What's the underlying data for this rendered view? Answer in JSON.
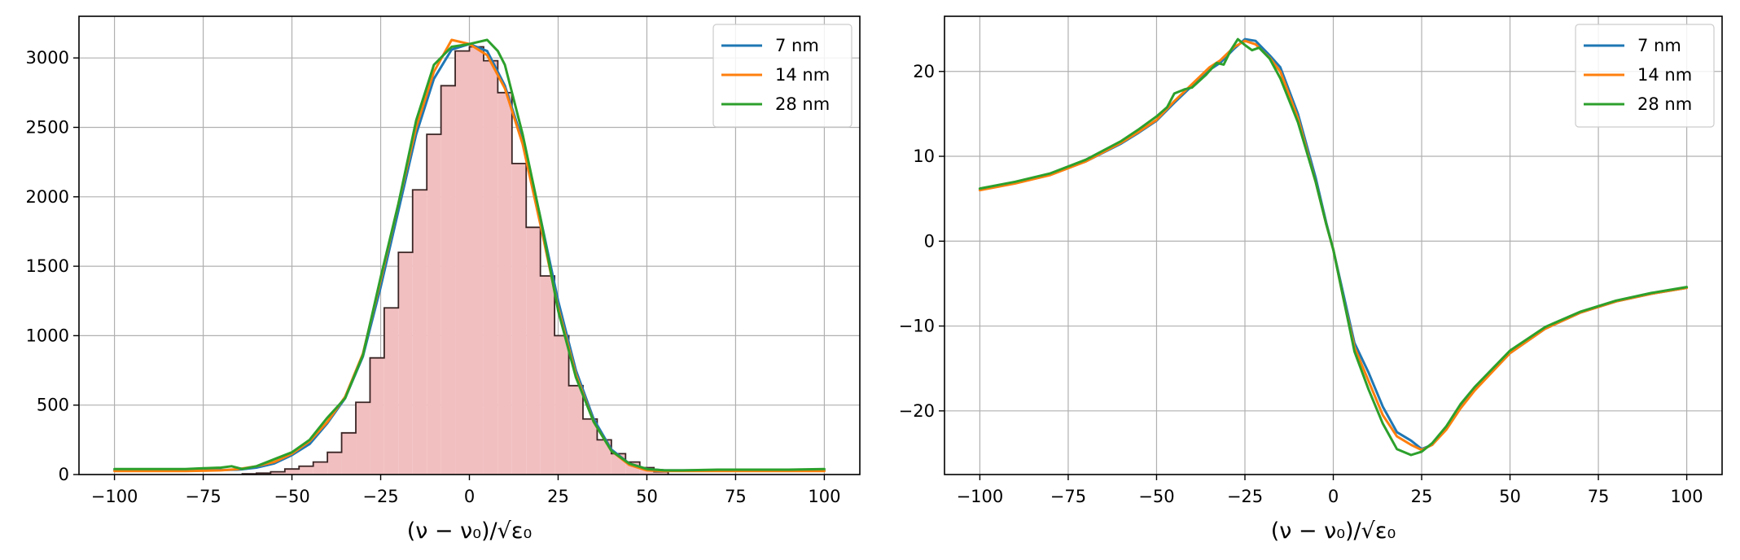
{
  "chart_data": [
    {
      "type": "line",
      "overlay": "histogram",
      "xlabel": "(ν − ν₀)/√ε₀",
      "ylabel": "",
      "xlim": [
        -110,
        110
      ],
      "ylim": [
        0,
        3300
      ],
      "xticks": [
        -100,
        -75,
        -50,
        -25,
        0,
        25,
        50,
        75,
        100
      ],
      "xtick_labels": [
        "−100",
        "−75",
        "−50",
        "−25",
        "0",
        "25",
        "50",
        "75",
        "100"
      ],
      "yticks": [
        0,
        500,
        1000,
        1500,
        2000,
        2500,
        3000
      ],
      "ytick_labels": [
        "0",
        "500",
        "1000",
        "1500",
        "2000",
        "2500",
        "3000"
      ],
      "grid": true,
      "legend": "top-right",
      "histogram": {
        "bin_width": 4,
        "bin_edges_start": -64,
        "counts": [
          5,
          10,
          20,
          40,
          60,
          90,
          160,
          300,
          520,
          840,
          1200,
          1600,
          2050,
          2450,
          2800,
          3050,
          3080,
          2980,
          2750,
          2240,
          1780,
          1430,
          1000,
          640,
          400,
          250,
          150,
          90,
          50,
          20
        ],
        "fill_color": "#f2bfc0",
        "edge_color": "#3a2424"
      },
      "series": [
        {
          "name": "7 nm",
          "color": "#1f77b4",
          "x": [
            -100,
            -80,
            -70,
            -65,
            -60,
            -55,
            -50,
            -45,
            -40,
            -35,
            -30,
            -25,
            -20,
            -15,
            -10,
            -5,
            0,
            5,
            10,
            15,
            20,
            25,
            30,
            35,
            40,
            45,
            50,
            55,
            60,
            70,
            80,
            90,
            100
          ],
          "y": [
            30,
            30,
            32,
            35,
            50,
            80,
            140,
            220,
            370,
            550,
            850,
            1350,
            1900,
            2450,
            2850,
            3060,
            3100,
            3050,
            2800,
            2400,
            1850,
            1250,
            750,
            400,
            180,
            80,
            40,
            30,
            30,
            30,
            30,
            30,
            30
          ]
        },
        {
          "name": "14 nm",
          "color": "#ff7f0e",
          "x": [
            -100,
            -80,
            -70,
            -65,
            -60,
            -55,
            -50,
            -45,
            -40,
            -35,
            -30,
            -25,
            -20,
            -15,
            -10,
            -5,
            0,
            5,
            10,
            15,
            20,
            25,
            30,
            35,
            40,
            45,
            50,
            55,
            60,
            70,
            80,
            90,
            100
          ],
          "y": [
            25,
            25,
            30,
            40,
            60,
            90,
            150,
            240,
            380,
            560,
            870,
            1400,
            1950,
            2500,
            2900,
            3130,
            3100,
            3020,
            2780,
            2380,
            1800,
            1200,
            720,
            380,
            170,
            70,
            30,
            25,
            25,
            25,
            25,
            25,
            25
          ]
        },
        {
          "name": "28 nm",
          "color": "#2ca02c",
          "x": [
            -100,
            -80,
            -75,
            -70,
            -67,
            -64,
            -60,
            -55,
            -50,
            -45,
            -40,
            -35,
            -30,
            -25,
            -20,
            -15,
            -10,
            -5,
            0,
            5,
            8,
            10,
            15,
            20,
            25,
            30,
            35,
            40,
            45,
            50,
            55,
            60,
            70,
            80,
            90,
            100
          ],
          "y": [
            40,
            40,
            45,
            50,
            60,
            40,
            60,
            110,
            160,
            250,
            410,
            550,
            860,
            1420,
            1950,
            2550,
            2950,
            3080,
            3100,
            3130,
            3050,
            2950,
            2450,
            1850,
            1180,
            700,
            380,
            170,
            80,
            40,
            30,
            30,
            35,
            35,
            35,
            40
          ]
        }
      ]
    },
    {
      "type": "line",
      "xlabel": "(ν − ν₀)/√ε₀",
      "ylabel": "",
      "xlim": [
        -110,
        110
      ],
      "ylim": [
        -27.5,
        26.5
      ],
      "xticks": [
        -100,
        -75,
        -50,
        -25,
        0,
        25,
        50,
        75,
        100
      ],
      "xtick_labels": [
        "−100",
        "−75",
        "−50",
        "−25",
        "0",
        "25",
        "50",
        "75",
        "100"
      ],
      "yticks": [
        -20,
        -10,
        0,
        10,
        20
      ],
      "ytick_labels": [
        "−20",
        "−10",
        "0",
        "10",
        "20"
      ],
      "grid": true,
      "legend": "top-right",
      "series": [
        {
          "name": "7 nm",
          "color": "#1f77b4",
          "x": [
            -100,
            -90,
            -80,
            -70,
            -60,
            -55,
            -50,
            -45,
            -40,
            -35,
            -32,
            -28,
            -25,
            -22,
            -18,
            -15,
            -10,
            -5,
            -2,
            0,
            3,
            6,
            10,
            14,
            18,
            22,
            25,
            28,
            32,
            36,
            40,
            50,
            60,
            70,
            80,
            90,
            100
          ],
          "y": [
            6.1,
            6.9,
            7.9,
            9.4,
            11.5,
            12.8,
            14.2,
            16.3,
            18.3,
            20.2,
            21.0,
            22.7,
            23.8,
            23.6,
            21.9,
            20.5,
            15.0,
            7.5,
            2.2,
            -1.0,
            -6.5,
            -12.0,
            -15.5,
            -19.5,
            -22.5,
            -23.5,
            -24.5,
            -24.0,
            -22.0,
            -19.5,
            -17.5,
            -13.2,
            -10.3,
            -8.4,
            -7.1,
            -6.2,
            -5.5
          ]
        },
        {
          "name": "14 nm",
          "color": "#ff7f0e",
          "x": [
            -100,
            -90,
            -80,
            -70,
            -60,
            -55,
            -50,
            -45,
            -40,
            -35,
            -32,
            -28,
            -25,
            -22,
            -18,
            -15,
            -10,
            -5,
            -2,
            0,
            3,
            6,
            10,
            14,
            18,
            22,
            25,
            28,
            32,
            36,
            40,
            50,
            60,
            70,
            80,
            90,
            100
          ],
          "y": [
            6.0,
            6.8,
            7.8,
            9.4,
            11.6,
            12.9,
            14.3,
            16.5,
            18.5,
            20.5,
            21.3,
            22.9,
            23.6,
            23.2,
            21.6,
            20.0,
            14.5,
            7.0,
            2.0,
            -1.0,
            -7.0,
            -12.5,
            -16.5,
            -20.5,
            -23.0,
            -24.0,
            -24.6,
            -24.0,
            -22.2,
            -19.7,
            -17.6,
            -13.2,
            -10.3,
            -8.4,
            -7.1,
            -6.2,
            -5.5
          ]
        },
        {
          "name": "28 nm",
          "color": "#2ca02c",
          "x": [
            -100,
            -90,
            -80,
            -70,
            -60,
            -55,
            -50,
            -47,
            -45,
            -42,
            -40,
            -36,
            -33,
            -31,
            -29,
            -27,
            -25,
            -23,
            -21,
            -18,
            -15,
            -10,
            -5,
            -2,
            0,
            3,
            6,
            10,
            14,
            18,
            22,
            25,
            28,
            32,
            36,
            40,
            50,
            60,
            70,
            80,
            90,
            100
          ],
          "y": [
            6.2,
            7.0,
            8.0,
            9.6,
            11.8,
            13.2,
            14.7,
            15.8,
            17.4,
            17.9,
            18.1,
            19.6,
            21.0,
            20.8,
            22.5,
            23.8,
            23.1,
            22.5,
            22.8,
            21.5,
            19.2,
            14.0,
            7.0,
            2.0,
            -1.0,
            -7.0,
            -13.0,
            -17.5,
            -21.5,
            -24.5,
            -25.2,
            -24.8,
            -23.8,
            -21.8,
            -19.2,
            -17.2,
            -12.9,
            -10.1,
            -8.3,
            -7.0,
            -6.1,
            -5.4
          ]
        }
      ]
    }
  ]
}
